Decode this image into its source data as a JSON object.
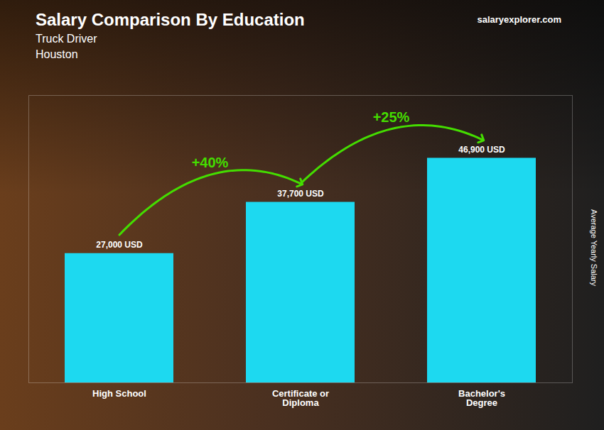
{
  "chart_data": {
    "type": "bar",
    "title": "Salary Comparison By Education",
    "subtitle": [
      "Truck Driver",
      "Houston"
    ],
    "caption": "salaryexplorer.com",
    "ylabel": "Average Yearly Salary",
    "categories": [
      "High School",
      "Certificate or\nDiploma",
      "Bachelor's\nDegree"
    ],
    "values": [
      27000,
      37700,
      46900
    ],
    "value_labels": [
      "27,000 USD",
      "37,700 USD",
      "46,900 USD"
    ],
    "data_labels": true,
    "color": "#1dd9f0",
    "annotations": [
      {
        "text": "+40%",
        "color": "#44dd00"
      },
      {
        "text": "+25%",
        "color": "#44dd00"
      }
    ],
    "ylim": [
      0,
      60000
    ],
    "grid": false,
    "tick_labels": "x"
  }
}
